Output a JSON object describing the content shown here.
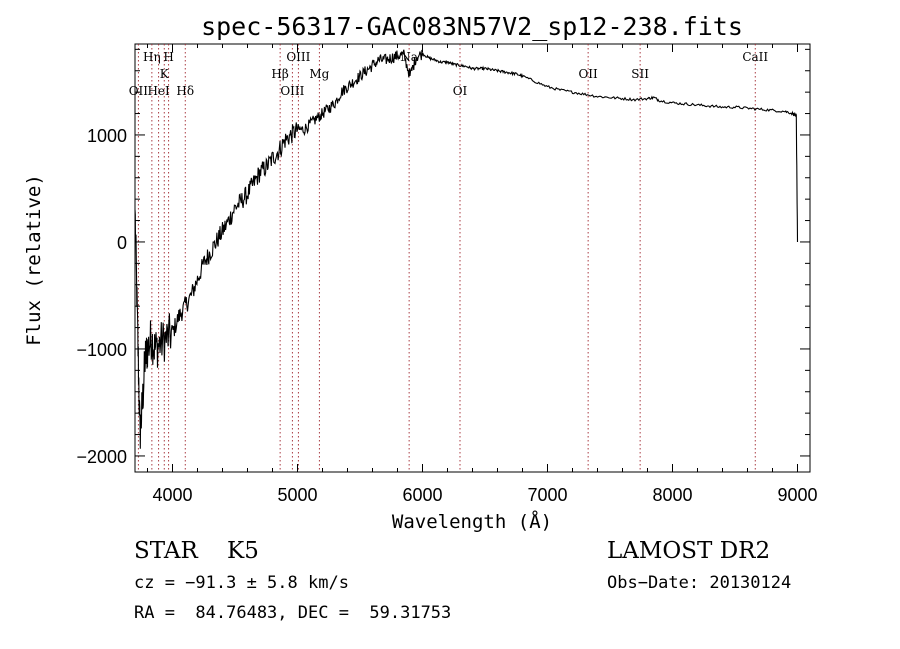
{
  "chart_data": {
    "type": "line",
    "title": "spec-56317-GAC083N57V2_sp12-238.fits",
    "xlabel": "Wavelength (Å)",
    "ylabel": "Flux (relative)",
    "xlim": [
      3700,
      9100
    ],
    "ylim": [
      -2150,
      1850
    ],
    "xticks": [
      4000,
      5000,
      6000,
      7000,
      8000,
      9000
    ],
    "xtick_labels": [
      "4000",
      "5000",
      "6000",
      "7000",
      "8000",
      "9000"
    ],
    "yticks": [
      -2000,
      -1000,
      0,
      1000
    ],
    "ytick_labels": [
      "−2000",
      "−1000",
      "0",
      "1000"
    ],
    "grid": false,
    "series": [
      {
        "x": [
          3700,
          3720,
          3740,
          3760,
          3780,
          3800,
          3830,
          3860,
          3900,
          3950,
          4000,
          4050,
          4100,
          4150,
          4200,
          4250,
          4300,
          4350,
          4400,
          4450,
          4500,
          4550,
          4600,
          4650,
          4700,
          4750,
          4800,
          4850,
          4900,
          4950,
          5000,
          5050,
          5100,
          5150,
          5200,
          5250,
          5300,
          5350,
          5400,
          5450,
          5500,
          5550,
          5600,
          5650,
          5700,
          5750,
          5800,
          5850,
          5900,
          5950,
          6000,
          6050,
          6100,
          6150,
          6200,
          6250,
          6300,
          6350,
          6400,
          6450,
          6500,
          6550,
          6600,
          6650,
          6700,
          6750,
          6800,
          6900,
          7000,
          7100,
          7200,
          7300,
          7400,
          7500,
          7600,
          7700,
          7800,
          7850,
          7900,
          8000,
          8100,
          8200,
          8300,
          8400,
          8500,
          8600,
          8700,
          8800,
          8900,
          8960,
          8990,
          9000
        ],
        "y": [
          300,
          -800,
          -1800,
          -1500,
          -1100,
          -1000,
          -900,
          -1000,
          -950,
          -900,
          -850,
          -700,
          -600,
          -500,
          -350,
          -200,
          -100,
          0,
          100,
          200,
          320,
          380,
          450,
          550,
          650,
          700,
          780,
          850,
          950,
          1000,
          1050,
          1050,
          1100,
          1150,
          1200,
          1250,
          1300,
          1400,
          1450,
          1500,
          1550,
          1600,
          1650,
          1700,
          1700,
          1720,
          1740,
          1750,
          1550,
          1730,
          1760,
          1720,
          1700,
          1680,
          1680,
          1660,
          1650,
          1640,
          1620,
          1620,
          1620,
          1610,
          1600,
          1590,
          1580,
          1570,
          1550,
          1500,
          1450,
          1420,
          1400,
          1380,
          1360,
          1350,
          1340,
          1330,
          1340,
          1350,
          1320,
          1300,
          1290,
          1280,
          1270,
          1260,
          1260,
          1250,
          1240,
          1230,
          1220,
          1200,
          1180,
          0
        ]
      }
    ],
    "lines": [
      {
        "label": "OII",
        "x": 3727,
        "row": 3
      },
      {
        "label": "Hη",
        "x": 3835,
        "row": 1
      },
      {
        "label": "HeI",
        "x": 3889,
        "row": 3
      },
      {
        "label": "K",
        "x": 3934,
        "row": 2
      },
      {
        "label": "H",
        "x": 3969,
        "row": 1
      },
      {
        "label": "Hδ",
        "x": 4102,
        "row": 3
      },
      {
        "label": "Hβ",
        "x": 4861,
        "row": 2
      },
      {
        "label": "OIII",
        "x": 4959,
        "row": 3
      },
      {
        "label": "OIII",
        "x": 5007,
        "row": 1
      },
      {
        "label": "Mg",
        "x": 5175,
        "row": 2
      },
      {
        "label": "Na",
        "x": 5893,
        "row": 1
      },
      {
        "label": "OI",
        "x": 6300,
        "row": 3
      },
      {
        "label": "OII",
        "x": 7325,
        "row": 2
      },
      {
        "label": "SII",
        "x": 7741,
        "row": 2
      },
      {
        "label": "CaII",
        "x": 8662,
        "row": 1
      }
    ]
  },
  "info": {
    "class_label": "STAR    K5",
    "cz_text": "cz = −91.3 ± 5.8 km/s",
    "radec_text": "RA =  84.76483, DEC =  59.31753",
    "survey_text": "LAMOST DR2",
    "obsdate_text": "Obs−Date: 20130124"
  }
}
